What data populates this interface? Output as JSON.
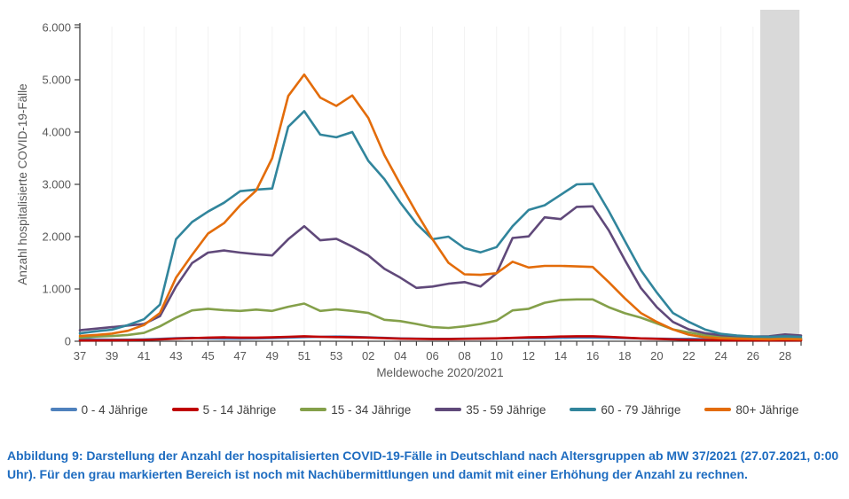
{
  "chart_data": {
    "type": "line",
    "title": "",
    "xlabel": "Meldewoche 2020/2021",
    "ylabel": "Anzahl hospitalisierte COVID-19-Fälle",
    "ylim": [
      0,
      6000
    ],
    "y_ticks": [
      0,
      1000,
      2000,
      3000,
      4000,
      5000,
      6000
    ],
    "y_tick_labels": [
      "0",
      "1.000",
      "2.000",
      "3.000",
      "4.000",
      "5.000",
      "6.000"
    ],
    "x": [
      "37",
      "38",
      "39",
      "40",
      "41",
      "42",
      "43",
      "44",
      "45",
      "46",
      "47",
      "48",
      "49",
      "50",
      "51",
      "52",
      "53",
      "01",
      "02",
      "03",
      "04",
      "05",
      "06",
      "07",
      "08",
      "09",
      "10",
      "11",
      "12",
      "13",
      "14",
      "15",
      "16",
      "17",
      "18",
      "19",
      "20",
      "21",
      "22",
      "23",
      "24",
      "25",
      "26",
      "27",
      "28",
      "29"
    ],
    "x_label_every": 2,
    "grid": false,
    "legend_position": "bottom",
    "provisional_region": {
      "start_week": "27",
      "end_week": "29",
      "color": "#D9D9D9"
    },
    "series": [
      {
        "name": "0 - 4 Jährige",
        "color": "#4F81BD",
        "values": [
          40,
          35,
          30,
          30,
          35,
          45,
          60,
          65,
          55,
          50,
          50,
          55,
          60,
          70,
          80,
          85,
          90,
          85,
          75,
          65,
          55,
          50,
          45,
          45,
          50,
          50,
          55,
          60,
          60,
          60,
          65,
          70,
          70,
          65,
          60,
          55,
          50,
          45,
          45,
          40,
          40,
          45,
          40,
          40,
          45,
          40
        ]
      },
      {
        "name": "5 - 14 Jährige",
        "color": "#C00000",
        "values": [
          15,
          15,
          18,
          20,
          25,
          35,
          50,
          60,
          70,
          75,
          70,
          70,
          75,
          85,
          95,
          85,
          80,
          75,
          70,
          60,
          50,
          45,
          40,
          40,
          45,
          50,
          55,
          65,
          75,
          80,
          90,
          95,
          95,
          85,
          70,
          55,
          45,
          35,
          25,
          20,
          18,
          15,
          15,
          15,
          15,
          15
        ]
      },
      {
        "name": "15 - 34 Jährige",
        "color": "#84A04A",
        "values": [
          70,
          90,
          100,
          120,
          160,
          285,
          450,
          590,
          620,
          595,
          580,
          605,
          580,
          660,
          720,
          580,
          610,
          580,
          540,
          410,
          385,
          330,
          270,
          255,
          285,
          330,
          395,
          590,
          620,
          735,
          790,
          800,
          800,
          650,
          535,
          450,
          340,
          225,
          170,
          115,
          85,
          70,
          60,
          55,
          60,
          55
        ]
      },
      {
        "name": "35 - 59 Jährige",
        "color": "#60497A",
        "values": [
          210,
          240,
          270,
          300,
          330,
          480,
          1045,
          1495,
          1695,
          1735,
          1695,
          1665,
          1640,
          1950,
          2200,
          1930,
          1960,
          1810,
          1640,
          1385,
          1215,
          1020,
          1045,
          1100,
          1130,
          1045,
          1300,
          1975,
          2005,
          2370,
          2335,
          2570,
          2580,
          2120,
          1555,
          1020,
          650,
          370,
          225,
          155,
          115,
          100,
          90,
          95,
          130,
          110
        ]
      },
      {
        "name": "60 - 79 Jährige",
        "color": "#31859C",
        "values": [
          150,
          190,
          220,
          310,
          420,
          700,
          1950,
          2280,
          2480,
          2650,
          2870,
          2900,
          2920,
          4100,
          4400,
          3950,
          3900,
          4000,
          3450,
          3100,
          2650,
          2250,
          1950,
          2000,
          1780,
          1700,
          1800,
          2200,
          2510,
          2600,
          2800,
          3000,
          3010,
          2490,
          1920,
          1360,
          930,
          540,
          370,
          225,
          140,
          110,
          90,
          85,
          95,
          85
        ]
      },
      {
        "name": "80+ Jährige",
        "color": "#E36C0A",
        "values": [
          100,
          120,
          145,
          200,
          310,
          540,
          1215,
          1650,
          2060,
          2260,
          2600,
          2880,
          3500,
          4690,
          5100,
          4660,
          4500,
          4700,
          4270,
          3560,
          3000,
          2460,
          1950,
          1500,
          1280,
          1270,
          1300,
          1520,
          1410,
          1440,
          1440,
          1430,
          1420,
          1130,
          820,
          540,
          370,
          225,
          125,
          75,
          55,
          45,
          40,
          35,
          40,
          35
        ]
      }
    ]
  },
  "caption": {
    "text": "Abbildung 9: Darstellung der Anzahl der hospitalisierten COVID-19-Fälle in Deutschland nach Altersgruppen ab MW 37/2021 (27.07.2021, 0:00 Uhr). Für den grau markierten Bereich ist noch mit Nachübermittlungen und damit mit einer Erhöhung der Anzahl zu rechnen.",
    "color": "#1E6CC0"
  }
}
